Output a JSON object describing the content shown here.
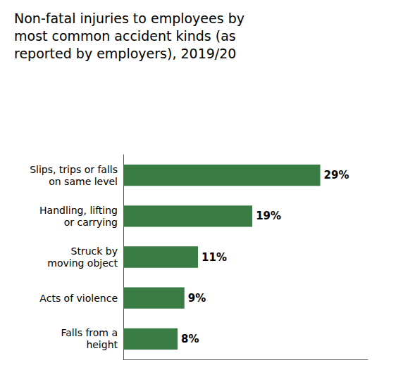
{
  "chart_data": {
    "type": "bar",
    "orientation": "horizontal",
    "title": "Non-fatal injuries to employees by\nmost common accident kinds (as\nreported by employers), 2019/20",
    "categories": [
      "Falls from a\nheight",
      "Acts of violence",
      "Struck by\nmoving object",
      "Handling, lifting\nor carrying",
      "Slips, trips or falls\non same level"
    ],
    "values": [
      8,
      9,
      11,
      19,
      29
    ],
    "value_labels": [
      "8%",
      "9%",
      "11%",
      "19%",
      "29%"
    ],
    "data_labels": true,
    "color": "#3a7d44",
    "xlim": [
      0,
      36
    ],
    "tick_labels": "y",
    "grid": false
  }
}
